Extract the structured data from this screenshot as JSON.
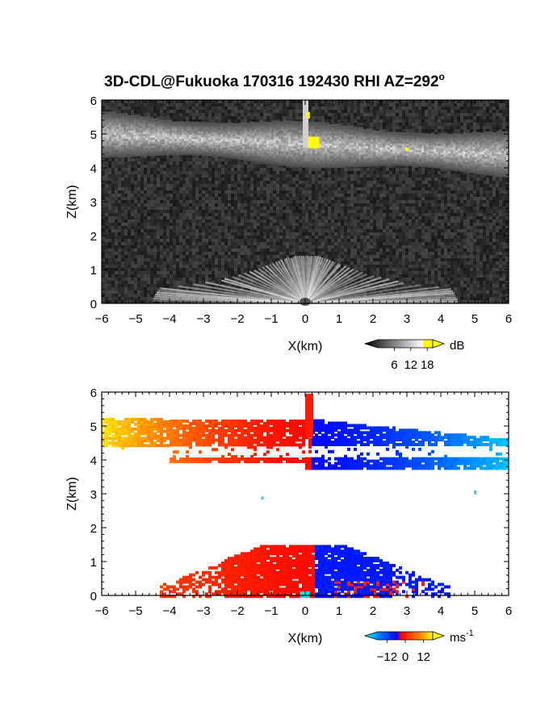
{
  "title": "3D-CDL@Fukuoka 170316 192430 RHI AZ=292",
  "title_degree": "o",
  "chart_data": [
    {
      "type": "heatmap",
      "field": "reflectivity",
      "xlabel": "X(km)",
      "ylabel": "Z(km)",
      "xlim": [
        -6,
        6
      ],
      "ylim": [
        0,
        6
      ],
      "x_ticks": [
        "-6",
        "-5",
        "-4",
        "-3",
        "-2",
        "-1",
        "0",
        "1",
        "2",
        "3",
        "4",
        "5",
        "6"
      ],
      "y_ticks": [
        "0",
        "1",
        "2",
        "3",
        "4",
        "5",
        "6"
      ],
      "colorbar": {
        "unit": "dB",
        "ticks": [
          "6",
          "12",
          "18"
        ],
        "range": [
          0,
          20
        ]
      },
      "colors": {
        "background": "#2b2b2b",
        "bright": "#ffffff",
        "saturated": "#ffff00"
      }
    },
    {
      "type": "heatmap",
      "field": "doppler_velocity",
      "xlabel": "X(km)",
      "ylabel": "Z(km)",
      "xlim": [
        -6,
        6
      ],
      "ylim": [
        0,
        6
      ],
      "x_ticks": [
        "-6",
        "-5",
        "-4",
        "-3",
        "-2",
        "-1",
        "0",
        "1",
        "2",
        "3",
        "4",
        "5",
        "6"
      ],
      "y_ticks": [
        "0",
        "1",
        "2",
        "3",
        "4",
        "5",
        "6"
      ],
      "colorbar": {
        "unit": "ms",
        "unit_exponent": "-1",
        "ticks": [
          "-12",
          "0",
          "12"
        ],
        "range": [
          -18,
          18
        ]
      },
      "colors": {
        "negative_far": "#00ffff",
        "negative": "#0033ff",
        "positive": "#ff1a00",
        "positive_far": "#ffff00"
      }
    }
  ]
}
